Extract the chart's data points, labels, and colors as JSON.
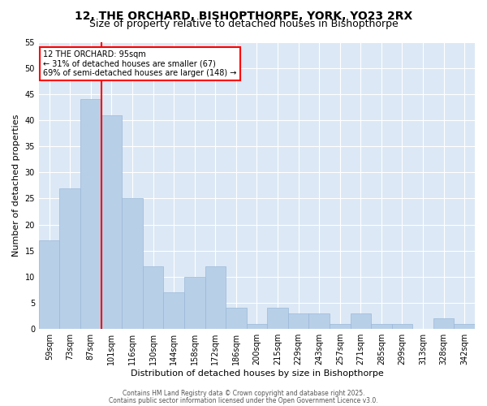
{
  "title1": "12, THE ORCHARD, BISHOPTHORPE, YORK, YO23 2RX",
  "title2": "Size of property relative to detached houses in Bishopthorpe",
  "xlabel": "Distribution of detached houses by size in Bishopthorpe",
  "ylabel": "Number of detached properties",
  "categories": [
    "59sqm",
    "73sqm",
    "87sqm",
    "101sqm",
    "116sqm",
    "130sqm",
    "144sqm",
    "158sqm",
    "172sqm",
    "186sqm",
    "200sqm",
    "215sqm",
    "229sqm",
    "243sqm",
    "257sqm",
    "271sqm",
    "285sqm",
    "299sqm",
    "313sqm",
    "328sqm",
    "342sqm"
  ],
  "values": [
    17,
    27,
    44,
    41,
    25,
    12,
    7,
    10,
    12,
    4,
    1,
    4,
    3,
    3,
    1,
    3,
    1,
    1,
    0,
    2,
    1
  ],
  "bar_color": "#b8cfe8",
  "bar_edgecolor": "#9ab8d8",
  "vline_color": "red",
  "annotation_text": "12 THE ORCHARD: 95sqm\n← 31% of detached houses are smaller (67)\n69% of semi-detached houses are larger (148) →",
  "annotation_box_color": "white",
  "annotation_box_edgecolor": "red",
  "ylim": [
    0,
    55
  ],
  "yticks": [
    0,
    5,
    10,
    15,
    20,
    25,
    30,
    35,
    40,
    45,
    50,
    55
  ],
  "bg_color": "#dce8f5",
  "footer1": "Contains HM Land Registry data © Crown copyright and database right 2025.",
  "footer2": "Contains public sector information licensed under the Open Government Licence v3.0.",
  "title_fontsize": 10,
  "subtitle_fontsize": 9,
  "tick_fontsize": 7,
  "label_fontsize": 8,
  "annotation_fontsize": 7,
  "footer_fontsize": 5.5
}
